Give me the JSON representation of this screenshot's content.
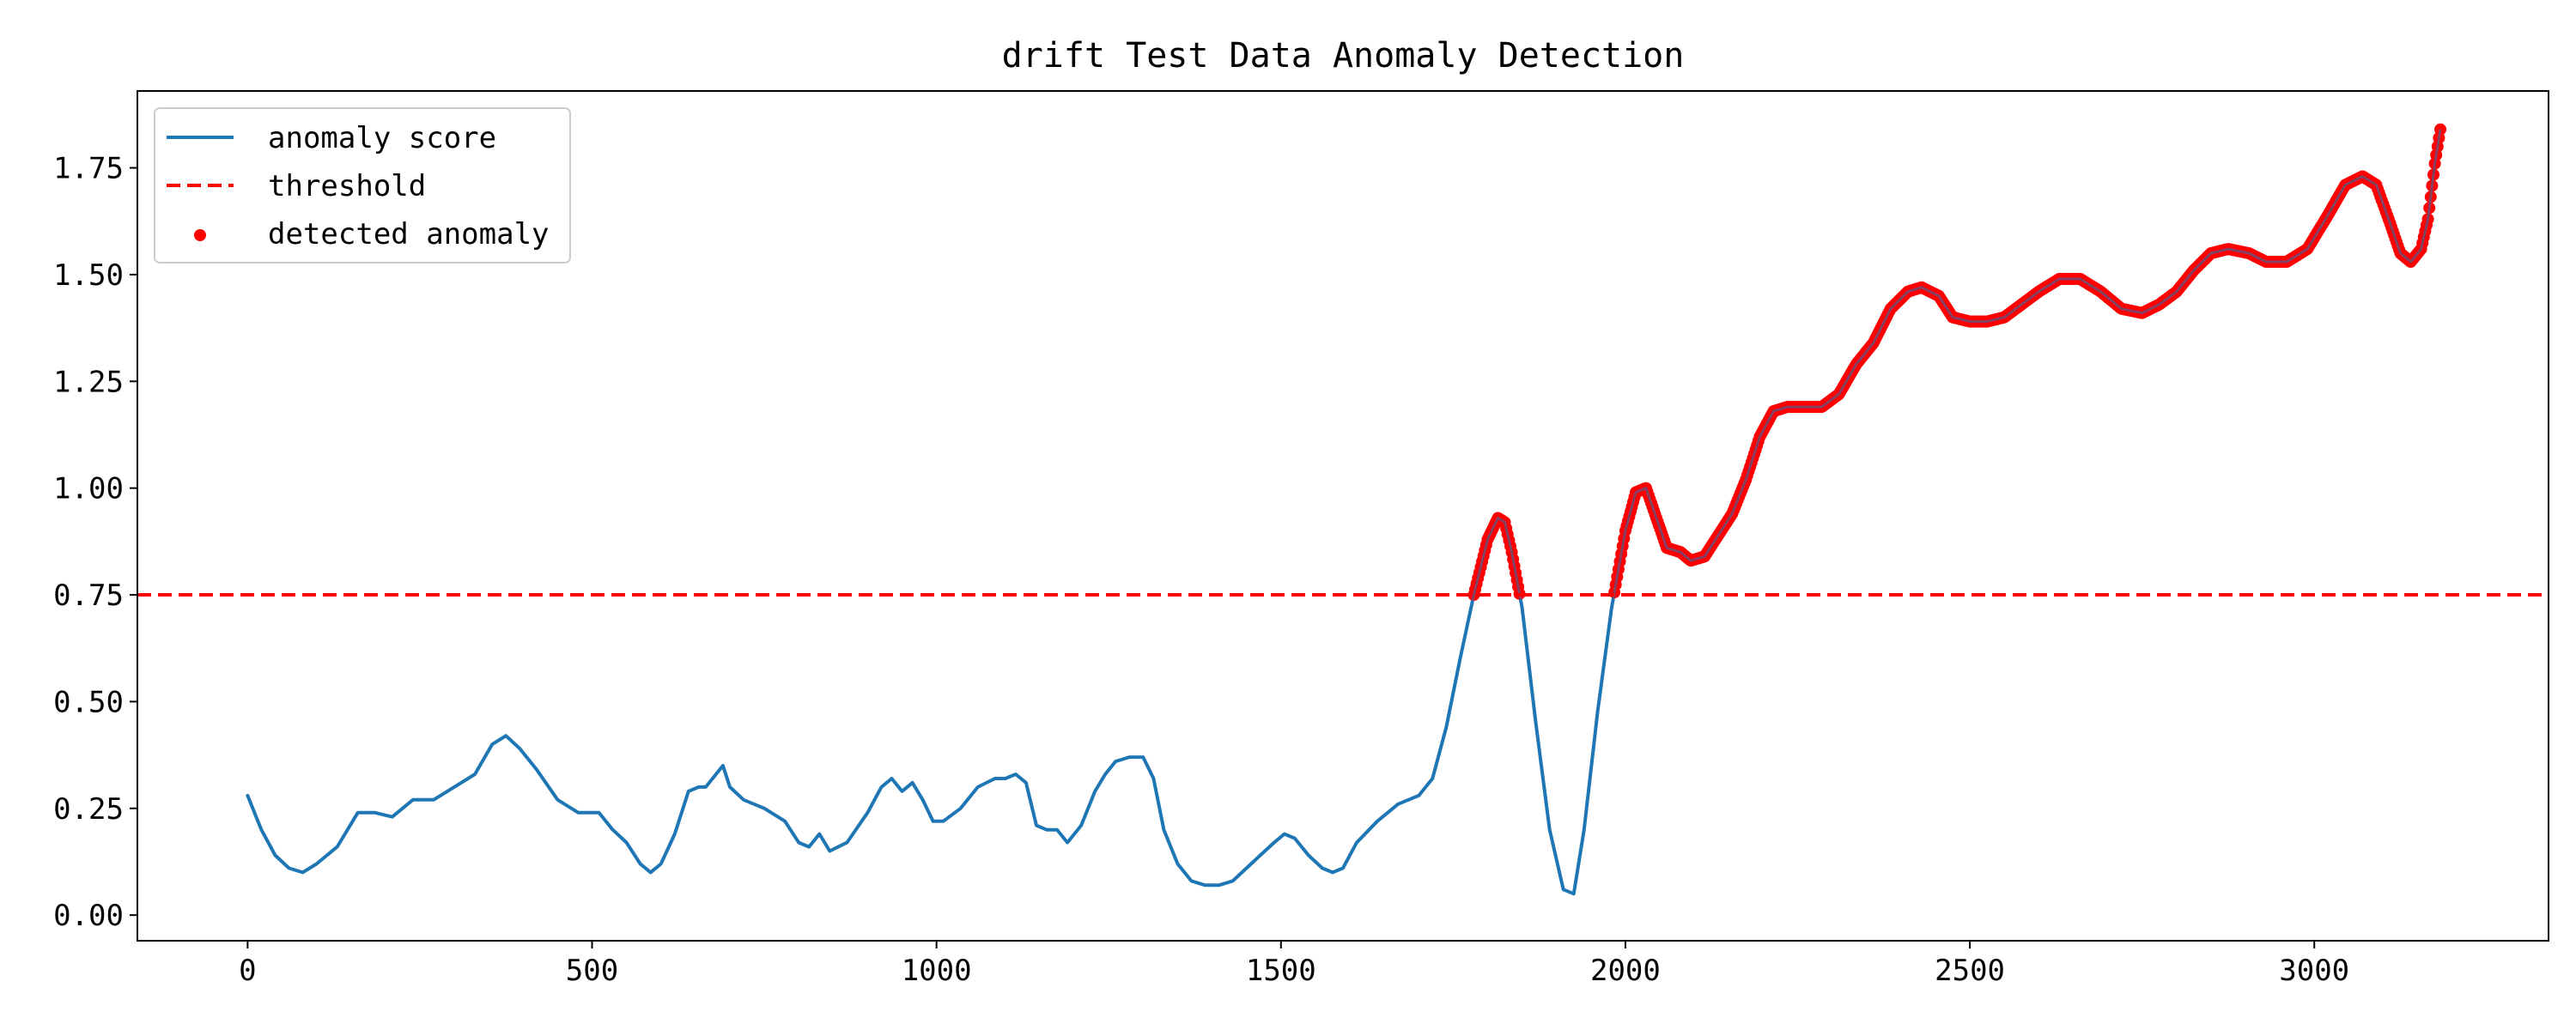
{
  "chart_data": {
    "type": "line",
    "title": "drift Test Data Anomaly Detection",
    "xlabel": "",
    "ylabel": "",
    "xlim": [
      -160,
      3340
    ],
    "ylim": [
      -0.06,
      1.93
    ],
    "xticks": [
      0,
      500,
      1000,
      1500,
      2000,
      2500,
      3000
    ],
    "yticks": [
      0.0,
      0.25,
      0.5,
      0.75,
      1.0,
      1.25,
      1.5,
      1.75
    ],
    "ytick_labels": [
      "0.00",
      "0.25",
      "0.50",
      "0.75",
      "1.00",
      "1.25",
      "1.50",
      "1.75"
    ],
    "grid": false,
    "legend_position": "top-left",
    "legend": {
      "score": "anomaly score",
      "threshold": "threshold",
      "anomaly": "detected anomaly"
    },
    "colors": {
      "score": "#1f77b4",
      "threshold": "#ff0000",
      "anomaly": "#ff0000"
    },
    "threshold": 0.75,
    "series": [
      {
        "name": "anomaly score",
        "x": [
          0,
          20,
          40,
          60,
          80,
          100,
          130,
          160,
          185,
          210,
          240,
          270,
          300,
          330,
          355,
          375,
          395,
          420,
          450,
          480,
          510,
          530,
          550,
          570,
          585,
          600,
          620,
          640,
          655,
          665,
          680,
          690,
          700,
          720,
          750,
          780,
          800,
          815,
          830,
          845,
          870,
          900,
          920,
          935,
          950,
          965,
          980,
          995,
          1010,
          1035,
          1060,
          1085,
          1100,
          1115,
          1130,
          1145,
          1160,
          1175,
          1190,
          1210,
          1230,
          1245,
          1260,
          1280,
          1300,
          1315,
          1330,
          1350,
          1370,
          1390,
          1410,
          1430,
          1450,
          1470,
          1490,
          1505,
          1520,
          1540,
          1560,
          1575,
          1590,
          1610,
          1640,
          1670,
          1700,
          1720,
          1740,
          1760,
          1780,
          1800,
          1815,
          1825,
          1835,
          1850,
          1870,
          1890,
          1910,
          1925,
          1940,
          1960,
          1980,
          2000,
          2015,
          2030,
          2045,
          2060,
          2080,
          2095,
          2115,
          2135,
          2155,
          2175,
          2195,
          2215,
          2235,
          2260,
          2285,
          2310,
          2335,
          2360,
          2385,
          2410,
          2430,
          2455,
          2475,
          2500,
          2525,
          2550,
          2575,
          2600,
          2630,
          2660,
          2690,
          2720,
          2750,
          2775,
          2800,
          2825,
          2850,
          2875,
          2905,
          2930,
          2960,
          2990,
          3020,
          3045,
          3070,
          3090,
          3110,
          3125,
          3140,
          3155,
          3165,
          3175,
          3183
        ],
        "y": [
          0.28,
          0.2,
          0.14,
          0.11,
          0.1,
          0.12,
          0.16,
          0.24,
          0.24,
          0.23,
          0.27,
          0.27,
          0.3,
          0.33,
          0.4,
          0.42,
          0.39,
          0.34,
          0.27,
          0.24,
          0.24,
          0.2,
          0.17,
          0.12,
          0.1,
          0.12,
          0.19,
          0.29,
          0.3,
          0.3,
          0.33,
          0.35,
          0.3,
          0.27,
          0.25,
          0.22,
          0.17,
          0.16,
          0.19,
          0.15,
          0.17,
          0.24,
          0.3,
          0.32,
          0.29,
          0.31,
          0.27,
          0.22,
          0.22,
          0.25,
          0.3,
          0.32,
          0.32,
          0.33,
          0.31,
          0.21,
          0.2,
          0.2,
          0.17,
          0.21,
          0.29,
          0.33,
          0.36,
          0.37,
          0.37,
          0.32,
          0.2,
          0.12,
          0.08,
          0.07,
          0.07,
          0.08,
          0.11,
          0.14,
          0.17,
          0.19,
          0.18,
          0.14,
          0.11,
          0.1,
          0.11,
          0.17,
          0.22,
          0.26,
          0.28,
          0.32,
          0.44,
          0.6,
          0.75,
          0.88,
          0.93,
          0.92,
          0.85,
          0.72,
          0.45,
          0.2,
          0.06,
          0.05,
          0.2,
          0.48,
          0.72,
          0.9,
          0.99,
          1.0,
          0.93,
          0.86,
          0.85,
          0.83,
          0.84,
          0.89,
          0.94,
          1.02,
          1.12,
          1.18,
          1.19,
          1.19,
          1.19,
          1.22,
          1.29,
          1.34,
          1.42,
          1.46,
          1.47,
          1.45,
          1.4,
          1.39,
          1.39,
          1.4,
          1.43,
          1.46,
          1.49,
          1.49,
          1.46,
          1.42,
          1.41,
          1.43,
          1.46,
          1.51,
          1.55,
          1.56,
          1.55,
          1.53,
          1.53,
          1.56,
          1.64,
          1.71,
          1.73,
          1.71,
          1.62,
          1.55,
          1.53,
          1.56,
          1.63,
          1.76,
          1.84
        ]
      }
    ]
  }
}
